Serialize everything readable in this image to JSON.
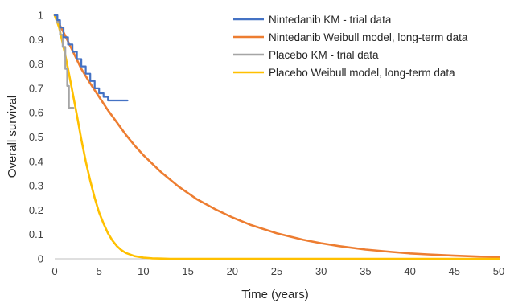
{
  "chart_data": {
    "type": "line",
    "title": "",
    "xlabel": "Time (years)",
    "ylabel": "Overall survival",
    "xlim": [
      0,
      50
    ],
    "ylim": [
      0,
      1
    ],
    "x_ticks": [
      0,
      5,
      10,
      15,
      20,
      25,
      30,
      35,
      40,
      45,
      50
    ],
    "y_ticks": [
      0,
      0.1,
      0.2,
      0.3,
      0.4,
      0.5,
      0.6,
      0.7,
      0.8,
      0.9,
      1
    ],
    "grid": false,
    "legend": "top-right",
    "series": [
      {
        "name": "Nintedanib KM - trial data",
        "color": "#4472C4",
        "style": "step",
        "x": [
          0,
          0.3,
          0.6,
          1.0,
          1.5,
          2.0,
          2.5,
          3.0,
          3.5,
          4.0,
          4.5,
          5.0,
          5.5,
          6.0,
          7.0,
          8.2
        ],
        "y": [
          1,
          0.98,
          0.95,
          0.91,
          0.88,
          0.85,
          0.82,
          0.79,
          0.76,
          0.73,
          0.7,
          0.68,
          0.665,
          0.65,
          0.65,
          0.65
        ]
      },
      {
        "name": "Nintedanib Weibull model, long-term data",
        "color": "#ED7D31",
        "style": "line",
        "x": [
          0,
          1,
          2,
          3,
          4,
          5,
          6,
          7,
          8,
          9,
          10,
          12,
          14,
          16,
          18,
          20,
          22,
          25,
          28,
          30,
          32,
          35,
          38,
          40,
          42,
          45,
          48,
          50
        ],
        "y": [
          1,
          0.93,
          0.855,
          0.78,
          0.72,
          0.665,
          0.61,
          0.56,
          0.51,
          0.465,
          0.425,
          0.355,
          0.295,
          0.245,
          0.205,
          0.17,
          0.14,
          0.105,
          0.078,
          0.064,
          0.052,
          0.038,
          0.028,
          0.022,
          0.018,
          0.013,
          0.009,
          0.007
        ]
      },
      {
        "name": "Placebo KM - trial data",
        "color": "#A5A5A5",
        "style": "step",
        "x": [
          0,
          0.3,
          0.6,
          0.9,
          1.2,
          1.4,
          1.6,
          1.8,
          2.1
        ],
        "y": [
          1,
          0.97,
          0.92,
          0.87,
          0.78,
          0.71,
          0.62,
          0.62,
          0.62
        ]
      },
      {
        "name": "Placebo Weibull model, long-term data",
        "color": "#FFC000",
        "style": "line",
        "x": [
          0,
          0.5,
          1,
          1.5,
          2,
          2.5,
          3,
          3.5,
          4,
          4.5,
          5,
          5.5,
          6,
          6.5,
          7,
          7.5,
          8,
          9,
          10,
          11,
          12,
          13,
          15,
          20,
          30,
          40,
          50
        ],
        "y": [
          1,
          0.95,
          0.87,
          0.78,
          0.685,
          0.59,
          0.49,
          0.4,
          0.32,
          0.25,
          0.19,
          0.145,
          0.105,
          0.075,
          0.052,
          0.036,
          0.024,
          0.011,
          0.005,
          0.002,
          0.001,
          0,
          0,
          0,
          0,
          0,
          0
        ]
      }
    ]
  }
}
